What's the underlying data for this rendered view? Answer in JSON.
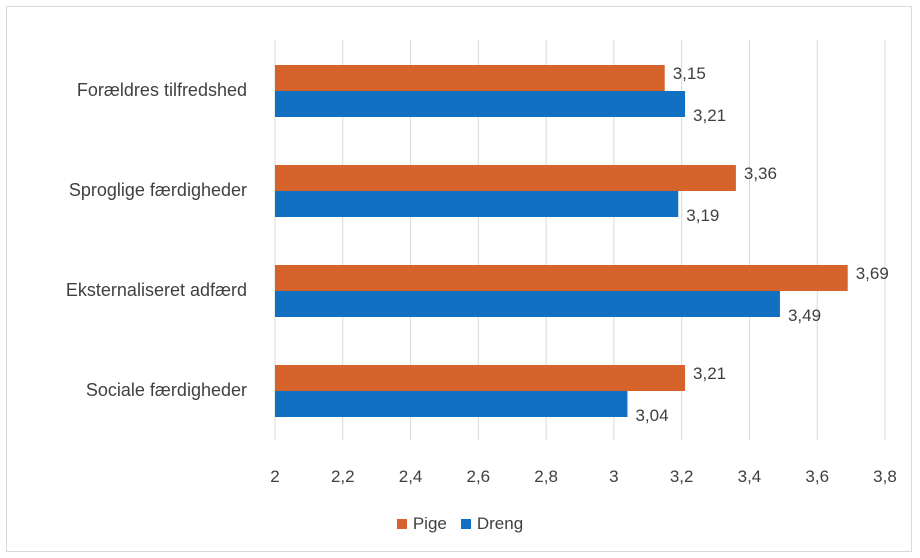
{
  "chart_data": {
    "type": "bar",
    "orientation": "horizontal",
    "categories": [
      "Forældres tilfredshed",
      "Sproglige færdigheder",
      "Eksternaliseret adfærd",
      "Sociale færdigheder"
    ],
    "series": [
      {
        "name": "Pige",
        "color": "#D5632B",
        "values": [
          3.15,
          3.36,
          3.69,
          3.21
        ],
        "labels": [
          "3,15",
          "3,36",
          "3,69",
          "3,21"
        ]
      },
      {
        "name": "Dreng",
        "color": "#1170C2",
        "values": [
          3.21,
          3.19,
          3.49,
          3.04
        ],
        "labels": [
          "3,21",
          "3,19",
          "3,49",
          "3,04"
        ]
      }
    ],
    "x_ticks": [
      2,
      2.2,
      2.4,
      2.6,
      2.8,
      3,
      3.2,
      3.4,
      3.6,
      3.8
    ],
    "x_tick_labels": [
      "2",
      "2,2",
      "2,4",
      "2,6",
      "2,8",
      "3",
      "3,2",
      "3,4",
      "3,6",
      "3,8"
    ],
    "xlim": [
      2,
      3.8
    ],
    "grid": "vertical",
    "legend_position": "bottom",
    "title": "",
    "xlabel": "",
    "ylabel": ""
  }
}
